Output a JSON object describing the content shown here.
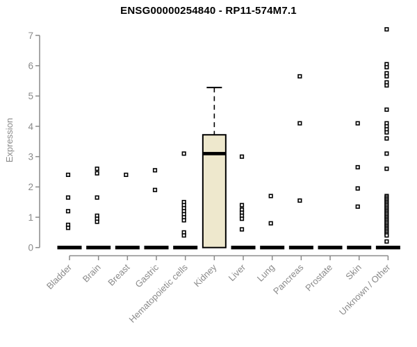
{
  "window": {
    "background": "#ffffff"
  },
  "chart_data": {
    "type": "boxplot",
    "title": "ENSG00000254840 - RP11-574M7.1",
    "ylabel": "Expression",
    "ylim": [
      0,
      7
    ],
    "yticks": [
      0,
      1,
      2,
      3,
      4,
      5,
      6,
      7
    ],
    "grid": false,
    "legend": "none",
    "axis_color": "#8a8a8a",
    "box_fill": "#EEE8CD",
    "box_stroke": "#000000",
    "point_color": "#000000",
    "categories": [
      "Bladder",
      "Brain",
      "Breast",
      "Gastric",
      "Hematopoietic cells",
      "Kidney",
      "Liver",
      "Lung",
      "Pancreas",
      "Prostate",
      "Skin",
      "Unknown / Other"
    ],
    "series": [
      {
        "name": "Bladder",
        "median": 0,
        "points": [
          2.4,
          1.65,
          1.2,
          0.75,
          0.65
        ]
      },
      {
        "name": "Brain",
        "median": 0,
        "points": [
          2.6,
          2.45,
          1.65,
          1.05,
          0.95,
          0.85
        ]
      },
      {
        "name": "Breast",
        "median": 0,
        "points": [
          2.4
        ]
      },
      {
        "name": "Gastric",
        "median": 0,
        "points": [
          2.55,
          1.9
        ]
      },
      {
        "name": "Hematopoietic cells",
        "median": 0,
        "points": [
          3.1,
          1.5,
          1.4,
          1.3,
          1.2,
          1.1,
          1.0,
          0.9,
          0.5,
          0.4
        ]
      },
      {
        "name": "Kidney",
        "box": {
          "q1": 0,
          "median": 3.1,
          "q3": 3.72,
          "whisker_low": 0,
          "whisker_high": 5.28
        },
        "points": []
      },
      {
        "name": "Liver",
        "median": 0,
        "points": [
          3.0,
          1.4,
          1.25,
          1.15,
          1.05,
          0.95,
          0.6
        ]
      },
      {
        "name": "Lung",
        "median": 0,
        "points": [
          1.7,
          0.8
        ]
      },
      {
        "name": "Pancreas",
        "median": 0,
        "points": [
          5.65,
          4.1,
          1.55
        ]
      },
      {
        "name": "Prostate",
        "median": 0,
        "points": []
      },
      {
        "name": "Skin",
        "median": 0,
        "points": [
          4.1,
          2.65,
          1.95,
          1.35
        ]
      },
      {
        "name": "Unknown / Other",
        "median": 0,
        "points": [
          7.2,
          6.05,
          5.95,
          5.75,
          5.65,
          5.45,
          5.35,
          4.55,
          4.1,
          4.0,
          3.9,
          3.8,
          3.6,
          3.1,
          2.6,
          1.7,
          1.65,
          1.6,
          1.55,
          1.5,
          1.45,
          1.4,
          1.35,
          1.3,
          1.25,
          1.2,
          1.15,
          1.1,
          1.05,
          1.0,
          0.95,
          0.9,
          0.85,
          0.8,
          0.75,
          0.7,
          0.65,
          0.6,
          0.55,
          0.5,
          0.45,
          0.4,
          0.2
        ]
      }
    ]
  }
}
